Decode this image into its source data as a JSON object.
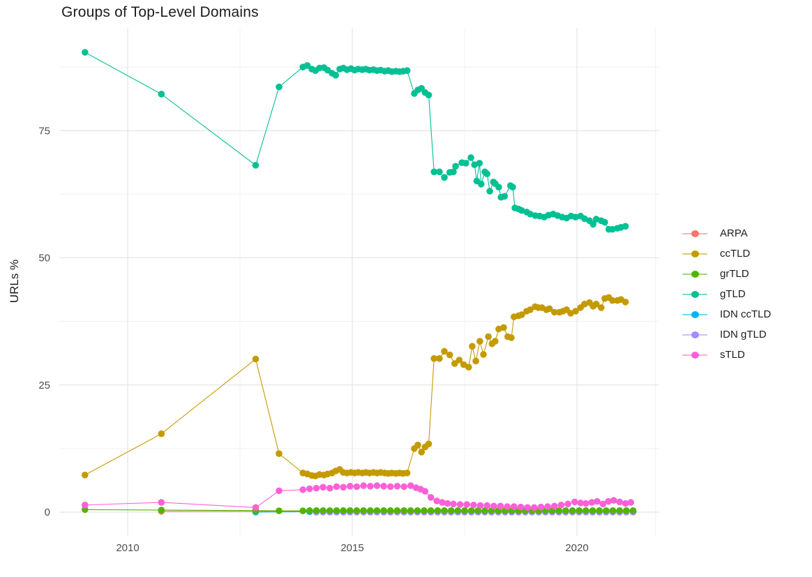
{
  "title": "Groups of Top-Level Domains",
  "y_axis_label": "URLs %",
  "axes": {
    "y_tick_labels": [
      "0",
      "25",
      "50",
      "75"
    ],
    "y_ticks": [
      0,
      25,
      50,
      75
    ],
    "y_minor_gridlines": [
      12.5,
      37.5,
      62.5,
      87.5
    ],
    "x_tick_labels": [
      "2010",
      "2015",
      "2020"
    ],
    "x_ticks": [
      2010,
      2015,
      2020
    ],
    "x_minor_gridlines": [
      2012.5,
      2017.5,
      2021.75
    ]
  },
  "legend": {
    "items": [
      {
        "label": "ARPA",
        "color": "#F8766D"
      },
      {
        "label": "ccTLD",
        "color": "#C49A00"
      },
      {
        "label": "grTLD",
        "color": "#53B400"
      },
      {
        "label": "gTLD",
        "color": "#00C094"
      },
      {
        "label": "IDN ccTLD",
        "color": "#00B6EB"
      },
      {
        "label": "IDN gTLD",
        "color": "#A58AFF"
      },
      {
        "label": "sTLD",
        "color": "#FB61D7"
      }
    ]
  },
  "chart_data": {
    "type": "line",
    "title": "Groups of Top-Level Domains",
    "xlabel": "",
    "ylabel": "URLs %",
    "xlim": [
      2008.5,
      2021.8
    ],
    "ylim": [
      -4.5,
      95
    ],
    "grid": true,
    "legend_position": "right",
    "point_and_line": true,
    "series": [
      {
        "name": "ARPA",
        "color": "#F8766D",
        "points": [
          [
            2010.75,
            0.15
          ],
          [
            2012.85,
            0.15
          ]
        ],
        "flat_run": {
          "from": 2014.05,
          "to": 2021.25,
          "step": 0.15,
          "value": 0.15
        }
      },
      {
        "name": "ccTLD",
        "color": "#C49A00",
        "points": [
          [
            2009.05,
            7.3
          ],
          [
            2010.75,
            15.4
          ],
          [
            2012.85,
            30.1
          ],
          [
            2013.37,
            11.5
          ],
          [
            2013.9,
            7.7
          ],
          [
            2014.0,
            7.5
          ],
          [
            2014.1,
            7.2
          ],
          [
            2014.18,
            7.1
          ],
          [
            2014.27,
            7.4
          ],
          [
            2014.37,
            7.3
          ],
          [
            2014.45,
            7.5
          ],
          [
            2014.55,
            7.7
          ],
          [
            2014.63,
            8.1
          ],
          [
            2014.72,
            8.4
          ],
          [
            2014.8,
            7.8
          ],
          [
            2014.88,
            7.7
          ],
          [
            2014.97,
            7.8
          ],
          [
            2015.05,
            7.7
          ],
          [
            2015.13,
            7.8
          ],
          [
            2015.22,
            7.7
          ],
          [
            2015.3,
            7.8
          ],
          [
            2015.38,
            7.7
          ],
          [
            2015.47,
            7.8
          ],
          [
            2015.55,
            7.7
          ],
          [
            2015.63,
            7.8
          ],
          [
            2015.72,
            7.7
          ],
          [
            2015.8,
            7.6
          ],
          [
            2015.88,
            7.7
          ],
          [
            2015.97,
            7.6
          ],
          [
            2016.05,
            7.7
          ],
          [
            2016.13,
            7.6
          ],
          [
            2016.22,
            7.7
          ],
          [
            2016.38,
            12.5
          ],
          [
            2016.46,
            13.2
          ],
          [
            2016.54,
            11.8
          ],
          [
            2016.62,
            12.8
          ],
          [
            2016.7,
            13.4
          ],
          [
            2016.82,
            30.2
          ],
          [
            2016.94,
            30.2
          ],
          [
            2017.05,
            31.6
          ],
          [
            2017.17,
            30.9
          ],
          [
            2017.28,
            29.2
          ],
          [
            2017.38,
            29.9
          ],
          [
            2017.48,
            29.0
          ],
          [
            2017.59,
            28.5
          ],
          [
            2017.67,
            32.6
          ],
          [
            2017.75,
            29.7
          ],
          [
            2017.84,
            33.6
          ],
          [
            2017.92,
            31.0
          ],
          [
            2018.03,
            34.5
          ],
          [
            2018.11,
            33.1
          ],
          [
            2018.18,
            33.6
          ],
          [
            2018.26,
            36.0
          ],
          [
            2018.37,
            36.3
          ],
          [
            2018.46,
            34.5
          ],
          [
            2018.54,
            34.3
          ],
          [
            2018.6,
            38.4
          ],
          [
            2018.7,
            38.6
          ],
          [
            2018.77,
            38.8
          ],
          [
            2018.88,
            39.5
          ],
          [
            2018.96,
            39.8
          ],
          [
            2019.07,
            40.4
          ],
          [
            2019.14,
            40.2
          ],
          [
            2019.22,
            40.2
          ],
          [
            2019.32,
            39.8
          ],
          [
            2019.39,
            40.0
          ],
          [
            2019.5,
            39.3
          ],
          [
            2019.61,
            39.3
          ],
          [
            2019.69,
            39.5
          ],
          [
            2019.77,
            39.8
          ],
          [
            2019.86,
            39.1
          ],
          [
            2019.97,
            39.5
          ],
          [
            2020.08,
            40.2
          ],
          [
            2020.17,
            40.9
          ],
          [
            2020.28,
            41.2
          ],
          [
            2020.36,
            40.5
          ],
          [
            2020.43,
            40.9
          ],
          [
            2020.54,
            40.2
          ],
          [
            2020.62,
            42.0
          ],
          [
            2020.71,
            42.2
          ],
          [
            2020.79,
            41.6
          ],
          [
            2020.9,
            41.6
          ],
          [
            2020.98,
            41.8
          ],
          [
            2021.08,
            41.3
          ]
        ]
      },
      {
        "name": "grTLD",
        "color": "#53B400",
        "points": [
          [
            2009.05,
            0.5
          ],
          [
            2010.75,
            0.4
          ],
          [
            2012.85,
            0.3
          ],
          [
            2013.37,
            0.25
          ],
          [
            2013.9,
            0.25
          ]
        ],
        "flat_run": {
          "from": 2014.05,
          "to": 2021.25,
          "step": 0.15,
          "value": 0.3
        }
      },
      {
        "name": "gTLD",
        "color": "#00C094",
        "points": [
          [
            2009.05,
            90.4
          ],
          [
            2010.75,
            82.2
          ],
          [
            2012.85,
            68.2
          ],
          [
            2013.37,
            83.6
          ],
          [
            2013.9,
            87.5
          ],
          [
            2014.0,
            87.8
          ],
          [
            2014.1,
            87.1
          ],
          [
            2014.18,
            86.8
          ],
          [
            2014.27,
            87.3
          ],
          [
            2014.37,
            87.4
          ],
          [
            2014.45,
            86.9
          ],
          [
            2014.55,
            86.3
          ],
          [
            2014.63,
            85.9
          ],
          [
            2014.72,
            87.1
          ],
          [
            2014.8,
            87.3
          ],
          [
            2014.88,
            87.0
          ],
          [
            2014.97,
            87.2
          ],
          [
            2015.05,
            86.9
          ],
          [
            2015.13,
            87.1
          ],
          [
            2015.22,
            87.0
          ],
          [
            2015.3,
            87.1
          ],
          [
            2015.38,
            86.9
          ],
          [
            2015.47,
            87.0
          ],
          [
            2015.55,
            86.8
          ],
          [
            2015.63,
            86.9
          ],
          [
            2015.72,
            86.7
          ],
          [
            2015.8,
            86.8
          ],
          [
            2015.88,
            86.6
          ],
          [
            2015.97,
            86.7
          ],
          [
            2016.05,
            86.6
          ],
          [
            2016.13,
            86.7
          ],
          [
            2016.22,
            86.8
          ],
          [
            2016.38,
            82.3
          ],
          [
            2016.46,
            83.0
          ],
          [
            2016.54,
            83.3
          ],
          [
            2016.62,
            82.5
          ],
          [
            2016.7,
            82.0
          ],
          [
            2016.82,
            66.9
          ],
          [
            2016.94,
            66.9
          ],
          [
            2017.05,
            65.8
          ],
          [
            2017.17,
            66.8
          ],
          [
            2017.25,
            66.9
          ],
          [
            2017.3,
            68.0
          ],
          [
            2017.44,
            68.7
          ],
          [
            2017.53,
            68.6
          ],
          [
            2017.64,
            69.7
          ],
          [
            2017.72,
            68.3
          ],
          [
            2017.77,
            65.1
          ],
          [
            2017.83,
            68.6
          ],
          [
            2017.87,
            64.5
          ],
          [
            2017.95,
            66.9
          ],
          [
            2018.0,
            66.5
          ],
          [
            2018.06,
            63.1
          ],
          [
            2018.14,
            64.9
          ],
          [
            2018.18,
            64.6
          ],
          [
            2018.26,
            63.9
          ],
          [
            2018.31,
            61.9
          ],
          [
            2018.39,
            62.1
          ],
          [
            2018.52,
            64.2
          ],
          [
            2018.57,
            63.9
          ],
          [
            2018.62,
            59.8
          ],
          [
            2018.7,
            59.6
          ],
          [
            2018.77,
            59.3
          ],
          [
            2018.88,
            59.0
          ],
          [
            2018.96,
            58.6
          ],
          [
            2019.07,
            58.3
          ],
          [
            2019.17,
            58.2
          ],
          [
            2019.27,
            58.0
          ],
          [
            2019.37,
            58.4
          ],
          [
            2019.47,
            58.6
          ],
          [
            2019.57,
            58.3
          ],
          [
            2019.67,
            58.0
          ],
          [
            2019.77,
            57.8
          ],
          [
            2019.87,
            58.2
          ],
          [
            2019.97,
            58.0
          ],
          [
            2020.08,
            58.2
          ],
          [
            2020.17,
            57.7
          ],
          [
            2020.28,
            57.3
          ],
          [
            2020.36,
            56.6
          ],
          [
            2020.43,
            57.6
          ],
          [
            2020.54,
            57.3
          ],
          [
            2020.62,
            57.0
          ],
          [
            2020.71,
            55.6
          ],
          [
            2020.79,
            55.6
          ],
          [
            2020.9,
            55.8
          ],
          [
            2020.98,
            56.0
          ],
          [
            2021.08,
            56.2
          ]
        ]
      },
      {
        "name": "IDN ccTLD",
        "color": "#00B6EB",
        "points": [
          [
            2012.85,
            0.0
          ]
        ],
        "flat_run": {
          "from": 2014.05,
          "to": 2021.25,
          "step": 0.15,
          "value": 0.1
        }
      },
      {
        "name": "IDN gTLD",
        "color": "#A58AFF",
        "points": [],
        "flat_run": {
          "from": 2014.2,
          "to": 2021.25,
          "step": 0.15,
          "value": 0.0
        }
      },
      {
        "name": "sTLD",
        "color": "#FB61D7",
        "points": [
          [
            2009.05,
            1.4
          ],
          [
            2010.75,
            1.9
          ],
          [
            2012.85,
            0.9
          ],
          [
            2013.37,
            4.2
          ],
          [
            2013.9,
            4.4
          ],
          [
            2014.05,
            4.6
          ],
          [
            2014.2,
            4.7
          ],
          [
            2014.35,
            4.9
          ],
          [
            2014.5,
            4.7
          ],
          [
            2014.65,
            5.0
          ],
          [
            2014.8,
            4.9
          ],
          [
            2014.95,
            5.1
          ],
          [
            2015.1,
            5.0
          ],
          [
            2015.25,
            5.2
          ],
          [
            2015.4,
            5.1
          ],
          [
            2015.55,
            5.2
          ],
          [
            2015.7,
            5.1
          ],
          [
            2015.85,
            5.0
          ],
          [
            2016.0,
            5.1
          ],
          [
            2016.15,
            5.0
          ],
          [
            2016.3,
            5.2
          ],
          [
            2016.42,
            4.8
          ],
          [
            2016.52,
            4.5
          ],
          [
            2016.62,
            4.1
          ],
          [
            2016.75,
            2.9
          ],
          [
            2016.88,
            2.2
          ],
          [
            2017.0,
            1.9
          ],
          [
            2017.12,
            1.7
          ],
          [
            2017.25,
            1.6
          ],
          [
            2017.4,
            1.5
          ],
          [
            2017.55,
            1.5
          ],
          [
            2017.7,
            1.4
          ],
          [
            2017.85,
            1.3
          ],
          [
            2018.0,
            1.3
          ],
          [
            2018.15,
            1.2
          ],
          [
            2018.3,
            1.2
          ],
          [
            2018.45,
            1.1
          ],
          [
            2018.6,
            1.1
          ],
          [
            2018.75,
            1.0
          ],
          [
            2018.9,
            0.9
          ],
          [
            2019.05,
            0.9
          ],
          [
            2019.2,
            1.0
          ],
          [
            2019.35,
            1.1
          ],
          [
            2019.5,
            1.2
          ],
          [
            2019.65,
            1.4
          ],
          [
            2019.8,
            1.6
          ],
          [
            2019.95,
            2.0
          ],
          [
            2020.08,
            1.8
          ],
          [
            2020.2,
            1.7
          ],
          [
            2020.33,
            1.9
          ],
          [
            2020.45,
            2.1
          ],
          [
            2020.58,
            1.6
          ],
          [
            2020.7,
            2.1
          ],
          [
            2020.82,
            2.3
          ],
          [
            2020.95,
            2.0
          ],
          [
            2021.08,
            1.7
          ],
          [
            2021.2,
            1.9
          ]
        ]
      }
    ]
  }
}
